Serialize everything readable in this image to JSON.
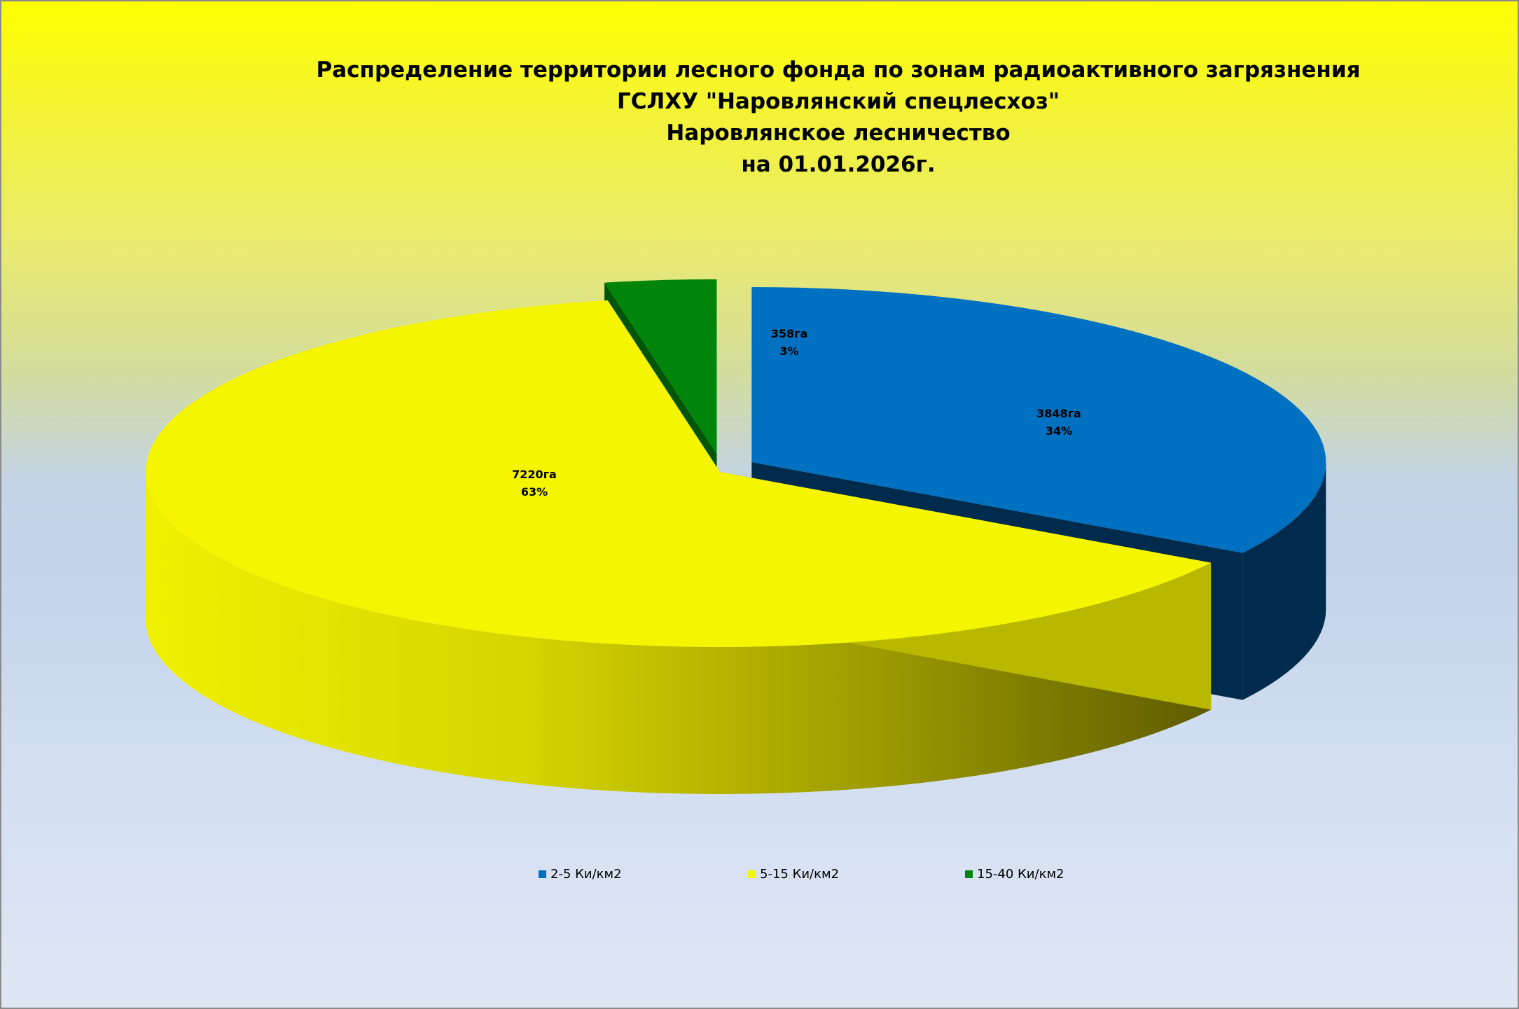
{
  "chart_data": {
    "type": "pie",
    "title_lines": [
      "Распределение территории лесного фонда по зонам радиоактивного загрязнения",
      "ГСЛХУ \"Наровлянский спецлесхоз\"",
      "Наровлянское лесничество",
      "на 01.01.2026г."
    ],
    "slices": [
      {
        "name": "2-5 Ки/км2",
        "value": 3848,
        "label": "3848га",
        "percent": "34%",
        "color": "#0070c0",
        "side_color": "#002b4d"
      },
      {
        "name": "5-15 Ки/км2",
        "value": 7220,
        "label": "7220га",
        "percent": "63%",
        "color": "#f5f500",
        "side_color": "#b8b800"
      },
      {
        "name": "15-40 Ки/км2",
        "value": 358,
        "label": "358га",
        "percent": "3%",
        "color": "#00840a",
        "side_color": "#005506"
      }
    ],
    "legend_position": "bottom",
    "style": "3d-exploded"
  }
}
